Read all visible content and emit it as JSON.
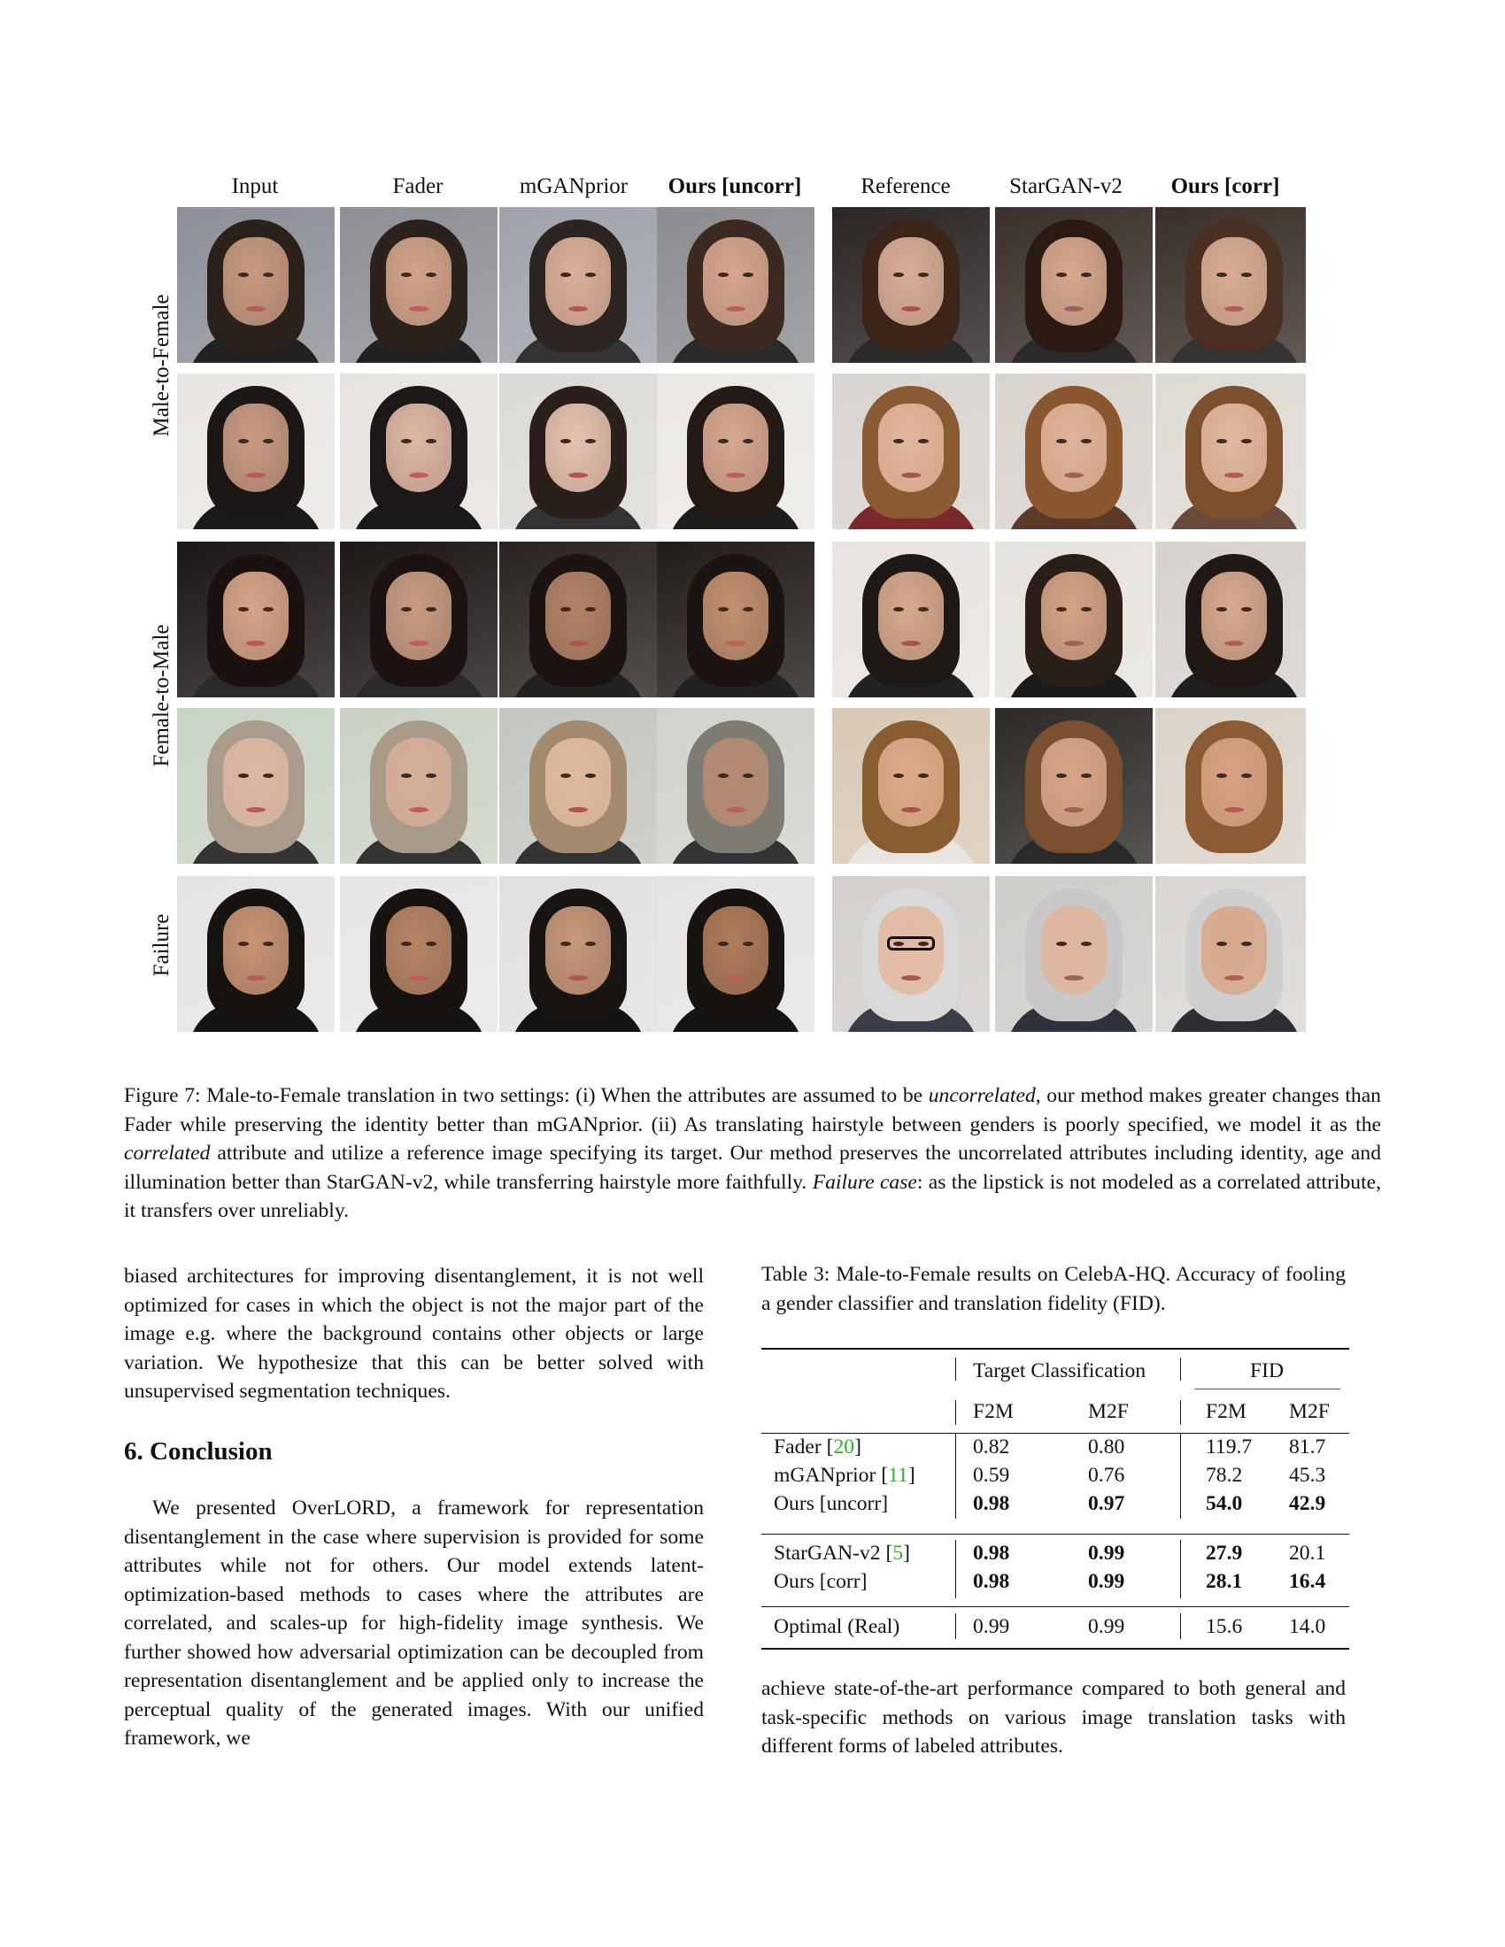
{
  "figure": {
    "column_headers": [
      "Input",
      "Fader",
      "mGANprior",
      "Ours [uncorr]",
      "Reference",
      "StarGAN-v2",
      "Ours [corr]"
    ],
    "row_groups": [
      "Male-to-Female",
      "Female-to-Male",
      "Failure"
    ],
    "caption": {
      "label": "Figure 7:",
      "p1": "Male-to-Female translation in two settings: (i) When the attributes are assumed to be",
      "em1": "uncorrelated",
      "p2": ", our method makes greater changes than Fader while preserving the identity better than mGANprior. (ii) As translating hairstyle between genders is poorly specified, we model it as the",
      "em2": "correlated",
      "p3": "attribute and utilize a reference image specifying its target. Our method preserves the uncorrelated attributes including identity, age and illumination better than StarGAN-v2, while transferring hairstyle more faithfully.",
      "em3": "Failure case",
      "p4": ": as the lipstick is not modeled as a correlated attribute, it transfers over unreliably."
    }
  },
  "left_column": {
    "para1": "biased architectures for improving disentanglement, it is not well optimized for cases in which the object is not the major part of the image e.g. where the background contains other objects or large variation. We hypothesize that this can be better solved with unsupervised segmentation techniques.",
    "section_title": "6. Conclusion",
    "para2": "We presented OverLORD, a framework for representation disentanglement in the case where supervision is provided for some attributes while not for others. Our model extends latent-optimization-based methods to cases where the attributes are correlated, and scales-up for high-fidelity image synthesis. We further showed how adversarial optimization can be decoupled from representation disentanglement and be applied only to increase the perceptual quality of the generated images. With our unified framework, we"
  },
  "table": {
    "caption": "Table 3: Male-to-Female results on CelebA-HQ. Accuracy of fooling a gender classifier and translation fidelity (FID).",
    "group_headers": [
      "Target Classification",
      "FID"
    ],
    "sub_headers": [
      "F2M",
      "M2F",
      "F2M",
      "M2F"
    ],
    "rows": [
      {
        "method": "Fader",
        "cite": "20",
        "vals": [
          "0.82",
          "0.80",
          "119.7",
          "81.7"
        ]
      },
      {
        "method": "mGANprior",
        "cite": "11",
        "vals": [
          "0.59",
          "0.76",
          "78.2",
          "45.3"
        ]
      },
      {
        "method": "Ours [uncorr]",
        "cite": "",
        "vals": [
          "0.98",
          "0.97",
          "54.0",
          "42.9"
        ]
      },
      {
        "method": "StarGAN-v2",
        "cite": "5",
        "vals": [
          "0.98",
          "0.99",
          "27.9",
          "20.1"
        ]
      },
      {
        "method": "Ours [corr]",
        "cite": "",
        "vals": [
          "0.98",
          "0.99",
          "28.1",
          "16.4"
        ]
      },
      {
        "method": "Optimal (Real)",
        "cite": "",
        "vals": [
          "0.99",
          "0.99",
          "15.6",
          "14.0"
        ]
      }
    ]
  },
  "right_column": {
    "para": "achieve state-of-the-art performance compared to both general and task-specific methods on various image translation tasks with different forms of labeled attributes."
  }
}
